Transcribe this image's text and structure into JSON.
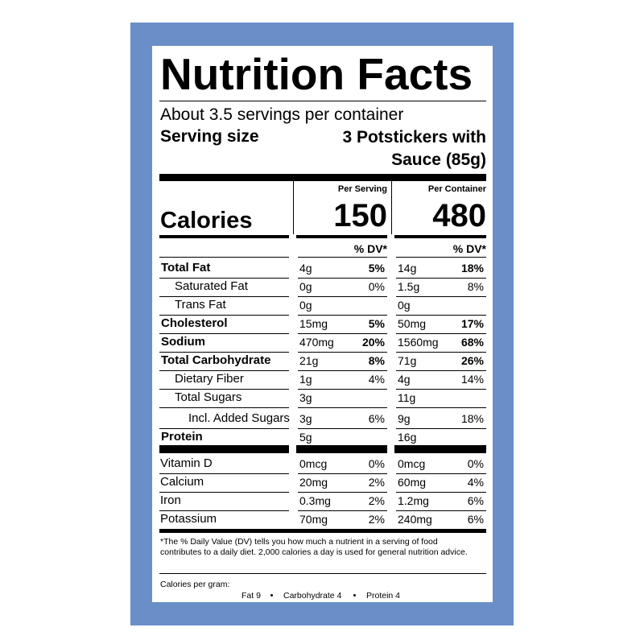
{
  "title": "Nutrition Facts",
  "servings": "About 3.5 servings per container",
  "serving_size_label": "Serving size",
  "serving_size_value": "3 Potstickers with Sauce (85g)",
  "columns": [
    "Per Serving",
    "Per Container"
  ],
  "calories": {
    "label": "Calories",
    "values": [
      "150",
      "480"
    ]
  },
  "dv_header": "% DV*",
  "nutrients": [
    {
      "name": "Total Fat",
      "bold": true,
      "indent": 0,
      "serving": [
        "4g",
        "5%"
      ],
      "container": [
        "14g",
        "18%"
      ]
    },
    {
      "name": "Saturated Fat",
      "bold": false,
      "indent": 1,
      "serving": [
        "0g",
        "0%"
      ],
      "container": [
        "1.5g",
        "8%"
      ]
    },
    {
      "name": "Trans Fat",
      "bold": false,
      "indent": 1,
      "serving": [
        "0g"
      ],
      "container": [
        "0g"
      ]
    },
    {
      "name": "Cholesterol",
      "bold": true,
      "indent": 0,
      "serving": [
        "15mg",
        "5%"
      ],
      "container": [
        "50mg",
        "17%"
      ]
    },
    {
      "name": "Sodium",
      "bold": true,
      "indent": 0,
      "serving": [
        "470mg",
        "20%"
      ],
      "container": [
        "1560mg",
        "68%"
      ]
    },
    {
      "name": "Total Carbohydrate",
      "bold": true,
      "indent": 0,
      "serving": [
        "21g",
        "8%"
      ],
      "container": [
        "71g",
        "26%"
      ]
    },
    {
      "name": "Dietary Fiber",
      "bold": false,
      "indent": 1,
      "serving": [
        "1g",
        "4%"
      ],
      "container": [
        "4g",
        "14%"
      ]
    },
    {
      "name": "Total Sugars",
      "bold": false,
      "indent": 1,
      "serving": [
        "3g"
      ],
      "container": [
        "11g"
      ]
    },
    {
      "name": "Incl. Added Sugars",
      "bold": false,
      "indent": 2,
      "serving": [
        "3g",
        "6%"
      ],
      "container": [
        "9g",
        "18%"
      ]
    },
    {
      "name": "Protein",
      "bold": true,
      "indent": 0,
      "serving": [
        "5g"
      ],
      "container": [
        "16g"
      ]
    }
  ],
  "vitamins": [
    {
      "name": "Vitamin D",
      "serving": [
        "0mcg",
        "0%"
      ],
      "container": [
        "0mcg",
        "0%"
      ]
    },
    {
      "name": "Calcium",
      "serving": [
        "20mg",
        "2%"
      ],
      "container": [
        "60mg",
        "4%"
      ]
    },
    {
      "name": "Iron",
      "serving": [
        "0.3mg",
        "2%"
      ],
      "container": [
        "1.2mg",
        "6%"
      ]
    },
    {
      "name": "Potassium",
      "serving": [
        "70mg",
        "2%"
      ],
      "container": [
        "240mg",
        "6%"
      ]
    }
  ],
  "footnote": "*The % Daily Value (DV) tells you how much a nutrient in a serving of food contributes to a daily diet. 2,000 calories a day is used for general nutrition advice.",
  "calories_per_gram": {
    "label": "Calories per gram:",
    "items": [
      "Fat 9",
      "Carbohydrate 4",
      "Protein 4"
    ]
  }
}
